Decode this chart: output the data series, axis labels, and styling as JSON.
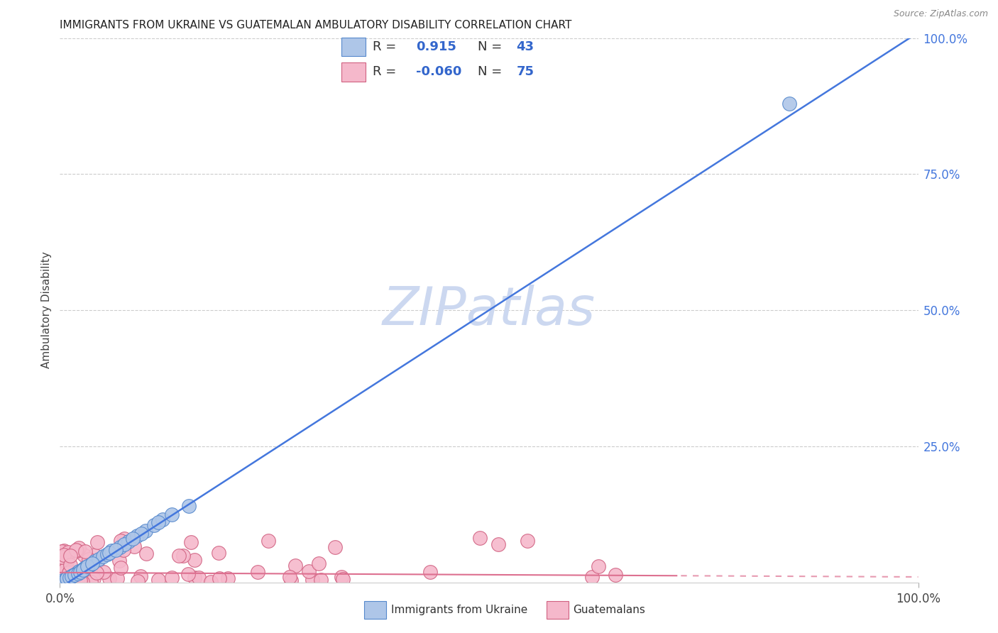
{
  "title": "IMMIGRANTS FROM UKRAINE VS GUATEMALAN AMBULATORY DISABILITY CORRELATION CHART",
  "source": "Source: ZipAtlas.com",
  "ylabel": "Ambulatory Disability",
  "ukraine_color": "#aec6e8",
  "ukraine_edge": "#5588cc",
  "guatemala_color": "#f5b8cb",
  "guatemala_edge": "#d06080",
  "ukraine_line_color": "#4477dd",
  "guatemala_line_color": "#dd7090",
  "background_color": "#ffffff",
  "watermark": "ZIPatlas",
  "watermark_color": "#ccd8f0",
  "right_tick_color": "#4477dd",
  "grid_color": "#cccccc",
  "title_color": "#222222",
  "source_color": "#888888",
  "legend_edge_color": "#cccccc"
}
